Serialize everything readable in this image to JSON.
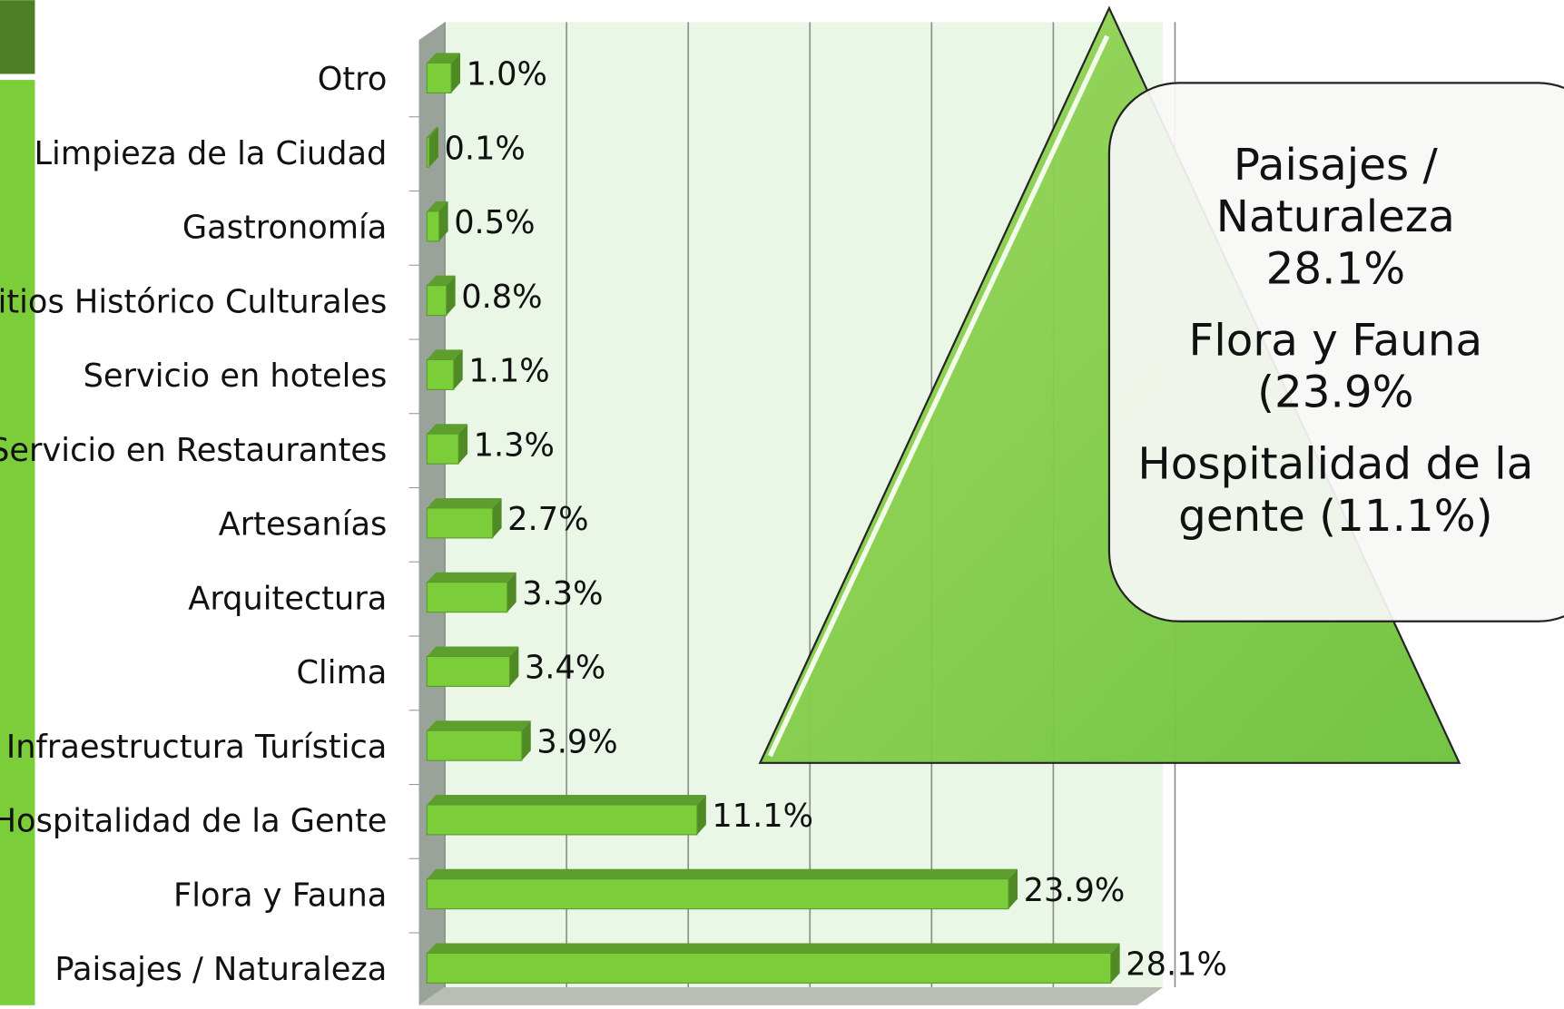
{
  "chart_data": {
    "type": "bar",
    "orientation": "horizontal",
    "categories": [
      "Otro",
      "Limpieza de la Ciudad",
      "Gastronomía",
      "Sitios Histórico Culturales",
      "Servicio en hoteles",
      "Servicio en Restaurantes",
      "Artesanías",
      "Arquitectura",
      "Clima",
      "Infraestructura Turística",
      "Hospitalidad de la Gente",
      "Flora y Fauna",
      "Paisajes / Naturaleza"
    ],
    "values": [
      1.0,
      0.1,
      0.5,
      0.8,
      1.1,
      1.3,
      2.7,
      3.3,
      3.4,
      3.9,
      11.1,
      23.9,
      28.1
    ],
    "value_labels": [
      "1.0%",
      "0.1%",
      "0.5%",
      "0.8%",
      "1.1%",
      "1.3%",
      "2.7%",
      "3.3%",
      "3.4%",
      "3.9%",
      "11.1%",
      "23.9%",
      "28.1%"
    ],
    "color": "#7ccd3a",
    "xlim": [
      0,
      30
    ],
    "xticks": [
      0,
      5,
      10,
      15,
      20,
      25,
      30
    ],
    "grid": true,
    "annotations": [
      "Paisajes / Naturaleza 28.1%",
      "Flora y Fauna (23.9%",
      "Hospitalidad de la gente (11.1%)"
    ]
  }
}
